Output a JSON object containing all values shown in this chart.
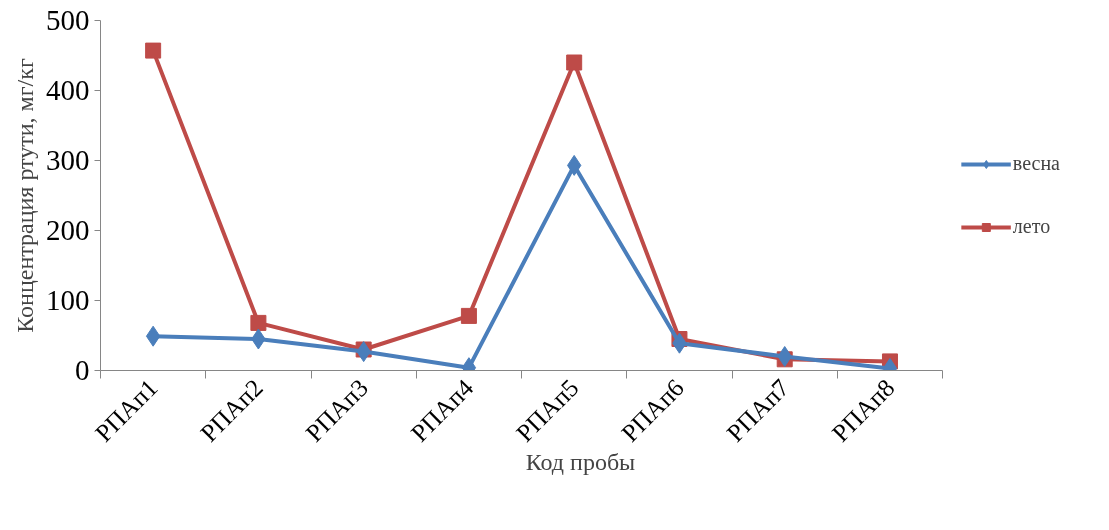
{
  "chart_data": {
    "type": "line",
    "xlabel": "Код пробы",
    "ylabel": "Концентрация ртути, мг/кг",
    "categories": [
      "РПАп1",
      "РПАп2",
      "РПАп3",
      "РПАп4",
      "РПАп5",
      "РПАп6",
      "РПАп7",
      "РПАп8"
    ],
    "series": [
      {
        "name": "весна",
        "color": "#4a7ebb",
        "marker": "diamond",
        "values": [
          49,
          45,
          27,
          4,
          293,
          39,
          20,
          3
        ]
      },
      {
        "name": "лето",
        "color": "#be4b48",
        "marker": "square",
        "values": [
          457,
          68,
          30,
          78,
          440,
          45,
          16,
          13
        ]
      }
    ],
    "ylim": [
      0,
      500
    ],
    "yticks": [
      0,
      100,
      200,
      300,
      400,
      500
    ],
    "grid": false,
    "legend": "right",
    "line_style": "solid"
  }
}
